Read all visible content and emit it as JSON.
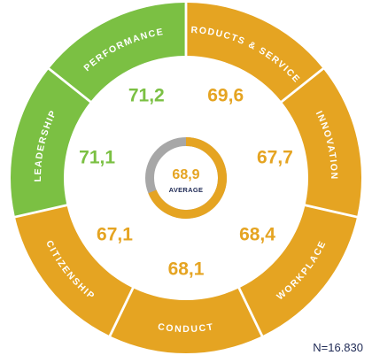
{
  "chart_data": {
    "type": "pie",
    "segments": [
      {
        "name": "PRODUCTS & SERVICES",
        "value": "69,6",
        "color": "#e5a422"
      },
      {
        "name": "INNOVATION",
        "value": "67,7",
        "color": "#e5a422"
      },
      {
        "name": "WORKPLACE",
        "value": "68,4",
        "color": "#e5a422"
      },
      {
        "name": "CONDUCT",
        "value": "68,1",
        "color": "#e5a422"
      },
      {
        "name": "CITIZENSHIP",
        "value": "67,1",
        "color": "#e5a422"
      },
      {
        "name": "LEADERSHIP",
        "value": "71,1",
        "color": "#7bc043"
      },
      {
        "name": "PERFORMANCE",
        "value": "71,2",
        "color": "#7bc043"
      }
    ],
    "average": {
      "value": "68,9",
      "label": "AVERAGE",
      "fraction": 0.689,
      "color": "#e5a422",
      "rest_color": "#a7a7a7"
    }
  },
  "footnote": "N=16.830"
}
